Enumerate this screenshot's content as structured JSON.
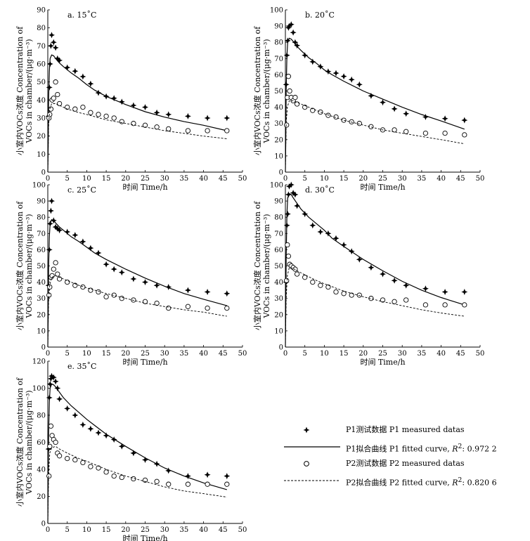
{
  "chart_data": [
    {
      "type": "scatter",
      "panel_label": "a. 15˚C",
      "xlabel": "时间 Time/h",
      "ylabel_line1": "小室内VOCs浓度 Concentration of",
      "ylabel_line2": "VOCs in chamber/(μg·m⁻³)",
      "xlim": [
        0,
        50
      ],
      "ylim": [
        0,
        90
      ],
      "x_ticks": [
        0,
        5,
        10,
        15,
        20,
        25,
        30,
        35,
        40,
        45,
        50
      ],
      "y_ticks": [
        0,
        10,
        20,
        30,
        40,
        50,
        60,
        70,
        80,
        90
      ],
      "series": [
        {
          "name": "P1测试数据 P1 measured datas",
          "marker": "star",
          "x": [
            0.2,
            0.4,
            0.6,
            0.8,
            1,
            1.5,
            2,
            2.5,
            3,
            5,
            7,
            9,
            11,
            13,
            15,
            17,
            19,
            22,
            25,
            28,
            31,
            36,
            41,
            46
          ],
          "y": [
            31,
            47,
            60,
            70,
            76,
            72,
            69,
            63,
            62,
            58,
            56,
            53,
            49,
            44,
            42,
            41,
            39,
            37,
            36,
            33,
            32,
            31,
            30,
            30
          ]
        },
        {
          "name": "P1拟合曲线 P1 fitted curve",
          "style": "solid",
          "x": [
            0,
            0.1,
            0.2,
            0.4,
            0.6,
            1,
            1.5,
            2,
            3,
            4,
            6,
            8,
            10,
            12,
            15,
            20,
            25,
            30,
            35,
            40,
            46
          ],
          "y": [
            0,
            15,
            40,
            56,
            63,
            65,
            64.5,
            63,
            60.5,
            58.5,
            55,
            52,
            48.5,
            45.5,
            42,
            37.5,
            33.5,
            30.5,
            28,
            26,
            23
          ]
        },
        {
          "name": "P2测试数据 P2 measured datas",
          "marker": "circle",
          "x": [
            0.3,
            0.5,
            0.8,
            1.1,
            1.5,
            2,
            2.5,
            3,
            5,
            7,
            9,
            11,
            13,
            15,
            17,
            19,
            22,
            25,
            28,
            31,
            36,
            41,
            46
          ],
          "y": [
            30,
            32,
            35,
            40,
            41,
            50,
            43,
            38,
            36,
            35,
            36,
            33,
            32,
            31,
            30,
            28,
            27,
            26,
            25,
            24,
            23,
            23,
            23
          ]
        },
        {
          "name": "P2拟合曲线 P2 fitted curve",
          "style": "dashed",
          "x": [
            0,
            0.2,
            0.5,
            1,
            2,
            3,
            5,
            8,
            10,
            15,
            20,
            25,
            30,
            35,
            40,
            46
          ],
          "y": [
            0,
            25,
            35,
            38,
            38,
            37,
            35,
            33,
            32,
            29,
            27,
            25,
            23,
            21.5,
            20,
            18.5
          ]
        }
      ]
    },
    {
      "type": "scatter",
      "panel_label": "b. 20˚C",
      "xlabel": "时间 Time/h",
      "ylabel_line1": "小室内VOCs浓度 Concentration of",
      "ylabel_line2": "VOCs in chamber/(μg·m⁻³)",
      "xlim": [
        0,
        50
      ],
      "ylim": [
        0,
        100
      ],
      "x_ticks": [
        0,
        5,
        10,
        15,
        20,
        25,
        30,
        35,
        40,
        45,
        50
      ],
      "y_ticks": [
        0,
        10,
        20,
        30,
        40,
        50,
        60,
        70,
        80,
        90,
        100
      ],
      "series": [
        {
          "name": "P1测试数据 P1 measured datas",
          "marker": "star",
          "x": [
            0.2,
            0.4,
            0.6,
            0.8,
            1,
            1.5,
            2,
            2.5,
            3,
            5,
            7,
            9,
            11,
            13,
            15,
            17,
            19,
            22,
            25,
            28,
            31,
            36,
            41,
            46
          ],
          "y": [
            54,
            72,
            81,
            89,
            90,
            91,
            86,
            80,
            78,
            72,
            68,
            65,
            62,
            61,
            59,
            57,
            54,
            47,
            43,
            39,
            36,
            34,
            33,
            32
          ]
        },
        {
          "name": "P1拟合曲线 P1 fitted curve",
          "style": "solid",
          "x": [
            0,
            0.1,
            0.2,
            0.4,
            0.6,
            1,
            1.5,
            2,
            3,
            4,
            6,
            8,
            10,
            12,
            15,
            20,
            25,
            30,
            35,
            40,
            46
          ],
          "y": [
            0,
            20,
            50,
            72,
            80,
            82.5,
            82,
            80.5,
            77.5,
            75,
            70.5,
            67,
            63,
            60,
            56,
            50,
            45,
            40,
            35.5,
            31.5,
            26.5
          ]
        },
        {
          "name": "P2测试数据 P2 measured datas",
          "marker": "circle",
          "x": [
            0.3,
            0.5,
            0.8,
            1.1,
            1.5,
            2,
            2.5,
            3,
            5,
            7,
            9,
            11,
            13,
            15,
            17,
            19,
            22,
            25,
            28,
            31,
            36,
            41,
            46
          ],
          "y": [
            29,
            46,
            59,
            50,
            46,
            44,
            46,
            42,
            40,
            38,
            37,
            35,
            34,
            32,
            31,
            30,
            28,
            26,
            26,
            25,
            24,
            24,
            23
          ]
        },
        {
          "name": "P2拟合曲线 P2 fitted curve",
          "style": "dashed",
          "x": [
            0,
            0.2,
            0.5,
            1,
            2,
            3,
            5,
            8,
            10,
            15,
            20,
            25,
            30,
            35,
            40,
            46
          ],
          "y": [
            0,
            30,
            40,
            44,
            44,
            43,
            41,
            38,
            36,
            32,
            29,
            26,
            24,
            22,
            20,
            17.5
          ]
        }
      ]
    },
    {
      "type": "scatter",
      "panel_label": "c. 25˚C",
      "xlabel": "时间 Time/h",
      "ylabel_line1": "小室内VOCs浓度 Concentration of",
      "ylabel_line2": "VOCs in chamber/(μg·m⁻³)",
      "xlim": [
        0,
        50
      ],
      "ylim": [
        0,
        100
      ],
      "x_ticks": [
        0,
        5,
        10,
        15,
        20,
        25,
        30,
        35,
        40,
        45,
        50
      ],
      "y_ticks": [
        0,
        10,
        20,
        30,
        40,
        50,
        60,
        70,
        80,
        90,
        100
      ],
      "series": [
        {
          "name": "P1测试数据 P1 measured datas",
          "marker": "star",
          "x": [
            0.2,
            0.4,
            0.6,
            0.8,
            1,
            1.5,
            2,
            2.5,
            3,
            5,
            7,
            9,
            11,
            13,
            15,
            17,
            19,
            22,
            25,
            28,
            31,
            36,
            41,
            46
          ],
          "y": [
            38,
            60,
            76,
            84,
            90,
            78,
            74,
            73,
            72,
            71,
            69,
            65,
            61,
            58,
            51,
            48,
            46,
            42,
            40,
            38,
            37,
            35,
            34,
            33
          ]
        },
        {
          "name": "P1拟合曲线 P1 fitted curve",
          "style": "solid",
          "x": [
            0,
            0.1,
            0.2,
            0.4,
            0.6,
            1,
            1.5,
            2,
            3,
            4,
            6,
            8,
            10,
            12,
            15,
            20,
            25,
            30,
            35,
            40,
            46
          ],
          "y": [
            0,
            20,
            48,
            68,
            76,
            78.5,
            78,
            76.5,
            74,
            72,
            68,
            65,
            61.5,
            58,
            54,
            48,
            42.5,
            37.5,
            33,
            29.5,
            25.5
          ]
        },
        {
          "name": "P2测试数据 P2 measured datas",
          "marker": "circle",
          "x": [
            0.3,
            0.5,
            0.8,
            1.1,
            1.5,
            2,
            2.5,
            3,
            5,
            7,
            9,
            11,
            13,
            15,
            17,
            19,
            22,
            25,
            28,
            31,
            36,
            41,
            46
          ],
          "y": [
            32,
            37,
            43,
            44,
            48,
            52,
            45,
            42,
            40,
            38,
            37,
            35,
            34,
            31,
            32,
            30,
            29,
            28,
            27,
            24,
            25,
            24,
            24
          ]
        },
        {
          "name": "P2拟合曲线 P2 fitted curve",
          "style": "dashed",
          "x": [
            0,
            0.2,
            0.5,
            1,
            2,
            3,
            5,
            8,
            10,
            15,
            20,
            25,
            30,
            35,
            40,
            46
          ],
          "y": [
            0,
            28,
            38,
            43,
            44,
            43,
            41,
            38,
            36.5,
            33,
            30,
            27,
            25,
            23,
            21.5,
            19
          ]
        }
      ]
    },
    {
      "type": "scatter",
      "panel_label": "d. 30˚C",
      "xlabel": "时间 Time/h",
      "ylabel_line1": "小室内VOCs浓度 Concentration of",
      "ylabel_line2": "VOCs in chamber/(μg·m⁻³)",
      "xlim": [
        0,
        50
      ],
      "ylim": [
        0,
        100
      ],
      "x_ticks": [
        0,
        5,
        10,
        15,
        20,
        25,
        30,
        35,
        40,
        45,
        50
      ],
      "y_ticks": [
        0,
        10,
        20,
        30,
        40,
        50,
        60,
        70,
        80,
        90,
        100
      ],
      "series": [
        {
          "name": "P1测试数据 P1 measured datas",
          "marker": "star",
          "x": [
            0.2,
            0.4,
            0.6,
            0.8,
            1,
            1.5,
            2,
            2.5,
            3,
            5,
            7,
            9,
            11,
            13,
            15,
            17,
            19,
            22,
            25,
            28,
            31,
            36,
            41,
            46
          ],
          "y": [
            40,
            75,
            82,
            94,
            99,
            100,
            95,
            94,
            87,
            82,
            75,
            71,
            70,
            67,
            63,
            59,
            54,
            49,
            45,
            41,
            38,
            36,
            34,
            34
          ]
        },
        {
          "name": "P1拟合曲线 P1 fitted curve",
          "style": "solid",
          "x": [
            0,
            0.1,
            0.2,
            0.4,
            0.6,
            1,
            1.5,
            2,
            3,
            4,
            6,
            8,
            10,
            12,
            15,
            20,
            25,
            30,
            35,
            40,
            46
          ],
          "y": [
            0,
            25,
            55,
            82,
            92,
            94.5,
            94,
            92,
            88.5,
            85,
            80,
            76,
            72,
            67,
            62,
            54,
            47,
            40.5,
            35,
            30.5,
            26
          ]
        },
        {
          "name": "P2测试数据 P2 measured datas",
          "marker": "circle",
          "x": [
            0.3,
            0.5,
            0.8,
            1.1,
            1.5,
            2,
            2.5,
            3,
            5,
            7,
            9,
            11,
            13,
            15,
            17,
            19,
            22,
            25,
            28,
            31,
            36,
            41,
            46
          ],
          "y": [
            41,
            63,
            56,
            51,
            50,
            49,
            48,
            45,
            43,
            40,
            38,
            37,
            34,
            33,
            32,
            32,
            30,
            29,
            28,
            29,
            26,
            26,
            26
          ]
        },
        {
          "name": "P2拟合曲线 P2 fitted curve",
          "style": "dashed",
          "x": [
            0,
            0.2,
            0.5,
            1,
            2,
            3,
            5,
            8,
            10,
            15,
            20,
            25,
            30,
            35,
            40,
            46
          ],
          "y": [
            0,
            30,
            44,
            49,
            48.5,
            47,
            44.5,
            41,
            39,
            34.5,
            31,
            28,
            25.5,
            23,
            21,
            19
          ]
        }
      ]
    },
    {
      "type": "scatter",
      "panel_label": "e. 35˚C",
      "xlabel": "时间 Time/h",
      "ylabel_line1": "小室内VOCs浓度 Concentration of",
      "ylabel_line2": "VOCs in chamber/(μg·m⁻³)",
      "xlim": [
        0,
        50
      ],
      "ylim": [
        0,
        120
      ],
      "x_ticks": [
        0,
        5,
        10,
        15,
        20,
        25,
        30,
        35,
        40,
        45,
        50
      ],
      "y_ticks": [
        0,
        20,
        40,
        60,
        80,
        100,
        120
      ],
      "series": [
        {
          "name": "P1测试数据 P1 measured datas",
          "marker": "star",
          "x": [
            0.2,
            0.4,
            0.6,
            0.8,
            1,
            1.5,
            2,
            2.5,
            3,
            5,
            7,
            9,
            11,
            13,
            15,
            17,
            19,
            22,
            25,
            28,
            31,
            36,
            41,
            46
          ],
          "y": [
            55,
            93,
            103,
            107,
            109,
            108,
            105,
            100,
            92,
            85,
            80,
            73,
            70,
            67,
            65,
            62,
            57,
            52,
            47,
            44,
            39,
            35,
            36,
            35
          ]
        },
        {
          "name": "P1拟合曲线 P1 fitted curve",
          "style": "solid",
          "x": [
            0,
            0.1,
            0.2,
            0.4,
            0.6,
            1,
            1.5,
            2,
            3,
            4,
            6,
            8,
            10,
            12,
            15,
            20,
            25,
            30,
            35,
            40,
            46
          ],
          "y": [
            0,
            30,
            65,
            90,
            100,
            103,
            102.5,
            101,
            97,
            93,
            87,
            82,
            77,
            72.5,
            66,
            57,
            48.5,
            41,
            35,
            30,
            25
          ]
        },
        {
          "name": "P2测试数据 P2 measured datas",
          "marker": "circle",
          "x": [
            0.3,
            0.5,
            0.8,
            1.1,
            1.5,
            2,
            2.5,
            3,
            5,
            7,
            9,
            11,
            13,
            15,
            17,
            19,
            22,
            25,
            28,
            31,
            36,
            41,
            46
          ],
          "y": [
            35,
            57,
            72,
            65,
            62,
            60,
            52,
            50,
            48,
            47,
            45,
            42,
            41,
            38,
            35,
            34,
            33,
            32,
            31,
            29,
            29,
            29,
            29
          ]
        },
        {
          "name": "P2拟合曲线 P2 fitted curve",
          "style": "dashed",
          "x": [
            0,
            0.2,
            0.5,
            1,
            2,
            3,
            5,
            8,
            10,
            15,
            20,
            25,
            30,
            35,
            40,
            46
          ],
          "y": [
            0,
            35,
            52,
            56,
            57,
            55,
            52,
            48,
            46,
            40,
            35,
            31,
            27,
            24,
            22,
            19.5
          ]
        }
      ]
    }
  ],
  "legend": {
    "p1_measured": "P1测试数据 P1 measured datas",
    "p1_fitted_prefix": "P1拟合曲线 P1 fitted curve, ",
    "r2_symbol": "R",
    "r2_sup": "2",
    "p1_r2_value": ": 0.972 2",
    "p2_measured": "P2测试数据 P2 measured datas",
    "p2_fitted_prefix": "P2拟合曲线 P2 fitted curve, ",
    "p2_r2_value": ": 0.820 6"
  }
}
